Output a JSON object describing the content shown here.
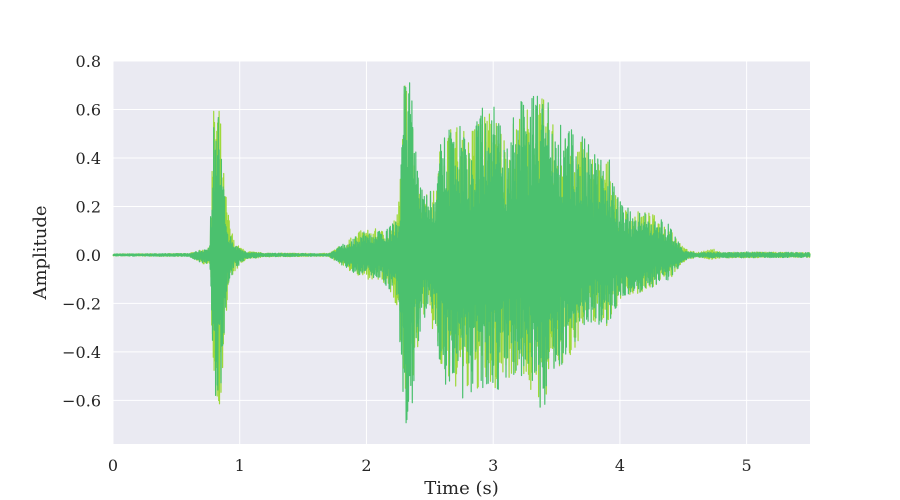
{
  "chart_data": {
    "type": "line",
    "title": "",
    "xlabel": "Time (s)",
    "ylabel": "Amplitude",
    "xlim": [
      0,
      5.5
    ],
    "ylim": [
      -0.78,
      0.8
    ],
    "grid": true,
    "background": "#eaeaf2",
    "grid_color": "#ffffff",
    "x_ticks": [
      {
        "value": 0,
        "label": "0"
      },
      {
        "value": 1,
        "label": "1"
      },
      {
        "value": 2,
        "label": "2"
      },
      {
        "value": 3,
        "label": "3"
      },
      {
        "value": 4,
        "label": "4"
      },
      {
        "value": 5,
        "label": "5"
      }
    ],
    "y_ticks": [
      {
        "value": 0.8,
        "label": "0.8"
      },
      {
        "value": 0.6,
        "label": "0.6"
      },
      {
        "value": 0.4,
        "label": "0.4"
      },
      {
        "value": 0.2,
        "label": "0.2"
      },
      {
        "value": 0.0,
        "label": "0.0"
      },
      {
        "value": -0.2,
        "label": "−0.2"
      },
      {
        "value": -0.4,
        "label": "−0.4"
      },
      {
        "value": -0.6,
        "label": "−0.6"
      }
    ],
    "series": [
      {
        "color": "#9ed93a",
        "envelope": [
          [
            0.0,
            0.004,
            -0.004
          ],
          [
            0.6,
            0.006,
            -0.006
          ],
          [
            0.76,
            0.03,
            -0.05
          ],
          [
            0.8,
            0.7,
            -0.58
          ],
          [
            0.82,
            0.71,
            -0.72
          ],
          [
            0.84,
            0.65,
            -0.62
          ],
          [
            0.86,
            0.45,
            -0.55
          ],
          [
            0.88,
            0.3,
            -0.35
          ],
          [
            0.92,
            0.14,
            -0.12
          ],
          [
            0.96,
            0.05,
            -0.07
          ],
          [
            1.05,
            0.015,
            -0.02
          ],
          [
            1.2,
            0.008,
            -0.008
          ],
          [
            1.7,
            0.006,
            -0.006
          ],
          [
            1.8,
            0.04,
            -0.04
          ],
          [
            1.95,
            0.1,
            -0.1
          ],
          [
            2.05,
            0.11,
            -0.1
          ],
          [
            2.15,
            0.1,
            -0.13
          ],
          [
            2.25,
            0.18,
            -0.22
          ],
          [
            2.3,
            0.72,
            -0.71
          ],
          [
            2.35,
            0.7,
            -0.65
          ],
          [
            2.4,
            0.35,
            -0.4
          ],
          [
            2.45,
            0.25,
            -0.25
          ],
          [
            2.55,
            0.28,
            -0.35
          ],
          [
            2.6,
            0.55,
            -0.55
          ],
          [
            2.7,
            0.55,
            -0.55
          ],
          [
            2.8,
            0.5,
            -0.6
          ],
          [
            2.9,
            0.6,
            -0.55
          ],
          [
            3.0,
            0.6,
            -0.58
          ],
          [
            3.1,
            0.5,
            -0.52
          ],
          [
            3.2,
            0.6,
            -0.48
          ],
          [
            3.3,
            0.63,
            -0.58
          ],
          [
            3.4,
            0.65,
            -0.66
          ],
          [
            3.5,
            0.55,
            -0.5
          ],
          [
            3.6,
            0.45,
            -0.44
          ],
          [
            3.7,
            0.5,
            -0.32
          ],
          [
            3.8,
            0.4,
            -0.28
          ],
          [
            3.9,
            0.4,
            -0.3
          ],
          [
            3.95,
            0.35,
            -0.25
          ],
          [
            4.0,
            0.2,
            -0.18
          ],
          [
            4.1,
            0.18,
            -0.17
          ],
          [
            4.2,
            0.18,
            -0.15
          ],
          [
            4.3,
            0.16,
            -0.12
          ],
          [
            4.4,
            0.12,
            -0.1
          ],
          [
            4.5,
            0.03,
            -0.03
          ],
          [
            4.6,
            0.01,
            -0.01
          ],
          [
            4.75,
            0.025,
            -0.02
          ],
          [
            4.8,
            0.01,
            -0.012
          ],
          [
            5.0,
            0.012,
            -0.012
          ],
          [
            5.5,
            0.01,
            -0.01
          ]
        ]
      },
      {
        "color": "#4bc16e",
        "envelope": [
          [
            0.0,
            0.004,
            -0.004
          ],
          [
            0.6,
            0.006,
            -0.006
          ],
          [
            0.76,
            0.03,
            -0.05
          ],
          [
            0.8,
            0.68,
            -0.56
          ],
          [
            0.82,
            0.69,
            -0.7
          ],
          [
            0.84,
            0.62,
            -0.6
          ],
          [
            0.86,
            0.42,
            -0.52
          ],
          [
            0.88,
            0.25,
            -0.3
          ],
          [
            0.92,
            0.1,
            -0.1
          ],
          [
            0.96,
            0.04,
            -0.06
          ],
          [
            1.05,
            0.012,
            -0.018
          ],
          [
            1.2,
            0.007,
            -0.007
          ],
          [
            1.7,
            0.005,
            -0.005
          ],
          [
            1.8,
            0.04,
            -0.04
          ],
          [
            1.95,
            0.09,
            -0.1
          ],
          [
            2.05,
            0.11,
            -0.1
          ],
          [
            2.15,
            0.1,
            -0.13
          ],
          [
            2.25,
            0.18,
            -0.22
          ],
          [
            2.3,
            0.72,
            -0.71
          ],
          [
            2.35,
            0.71,
            -0.7
          ],
          [
            2.4,
            0.36,
            -0.42
          ],
          [
            2.45,
            0.24,
            -0.25
          ],
          [
            2.55,
            0.28,
            -0.35
          ],
          [
            2.6,
            0.55,
            -0.55
          ],
          [
            2.7,
            0.55,
            -0.55
          ],
          [
            2.8,
            0.5,
            -0.62
          ],
          [
            2.9,
            0.6,
            -0.55
          ],
          [
            3.0,
            0.64,
            -0.6
          ],
          [
            3.1,
            0.5,
            -0.52
          ],
          [
            3.2,
            0.64,
            -0.48
          ],
          [
            3.3,
            0.67,
            -0.58
          ],
          [
            3.4,
            0.68,
            -0.68
          ],
          [
            3.5,
            0.55,
            -0.5
          ],
          [
            3.6,
            0.52,
            -0.44
          ],
          [
            3.7,
            0.52,
            -0.32
          ],
          [
            3.8,
            0.42,
            -0.28
          ],
          [
            3.9,
            0.42,
            -0.3
          ],
          [
            3.95,
            0.38,
            -0.25
          ],
          [
            4.0,
            0.22,
            -0.18
          ],
          [
            4.1,
            0.18,
            -0.17
          ],
          [
            4.2,
            0.18,
            -0.15
          ],
          [
            4.3,
            0.16,
            -0.12
          ],
          [
            4.4,
            0.12,
            -0.1
          ],
          [
            4.5,
            0.02,
            -0.025
          ],
          [
            4.6,
            0.008,
            -0.008
          ],
          [
            4.75,
            0.012,
            -0.012
          ],
          [
            4.8,
            0.01,
            -0.012
          ],
          [
            5.0,
            0.012,
            -0.012
          ],
          [
            5.5,
            0.01,
            -0.01
          ]
        ]
      }
    ]
  }
}
